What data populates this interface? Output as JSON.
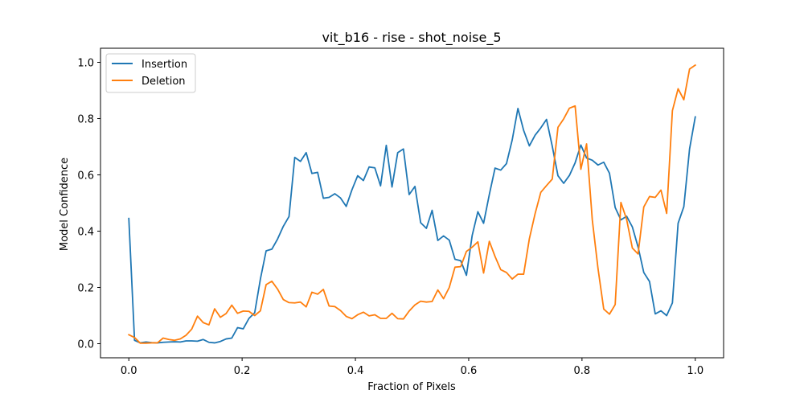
{
  "chart_data": {
    "type": "line",
    "title": "vit_b16 - rise - shot_noise_5",
    "xlabel": "Fraction of Pixels",
    "ylabel": "Model Confidence",
    "xlim": [
      -0.05,
      1.05
    ],
    "ylim": [
      -0.05,
      1.05
    ],
    "xticks": [
      0.0,
      0.2,
      0.4,
      0.6,
      0.8,
      1.0
    ],
    "xtick_labels": [
      "0.0",
      "0.2",
      "0.4",
      "0.6",
      "0.8",
      "1.0"
    ],
    "yticks": [
      0.0,
      0.2,
      0.4,
      0.6,
      0.8,
      1.0
    ],
    "ytick_labels": [
      "0.0",
      "0.2",
      "0.4",
      "0.6",
      "0.8",
      "1.0"
    ],
    "grid": false,
    "legend_position": "top-left",
    "series": [
      {
        "name": "Insertion",
        "color": "#1f77b4",
        "x": [
          0.0,
          0.0101,
          0.0202,
          0.0303,
          0.0404,
          0.0505,
          0.0606,
          0.0707,
          0.0808,
          0.0909,
          0.101,
          0.1111,
          0.1212,
          0.1313,
          0.1414,
          0.1515,
          0.1616,
          0.1717,
          0.1818,
          0.1919,
          0.202,
          0.2121,
          0.2222,
          0.2323,
          0.2424,
          0.2525,
          0.2626,
          0.2727,
          0.2828,
          0.2929,
          0.303,
          0.3131,
          0.3232,
          0.3333,
          0.3434,
          0.3535,
          0.3636,
          0.3737,
          0.3838,
          0.3939,
          0.404,
          0.4141,
          0.4242,
          0.4343,
          0.4444,
          0.4545,
          0.4646,
          0.4747,
          0.4848,
          0.4949,
          0.5051,
          0.5152,
          0.5253,
          0.5354,
          0.5455,
          0.5556,
          0.5657,
          0.5758,
          0.5859,
          0.596,
          0.6061,
          0.6162,
          0.6263,
          0.6364,
          0.6465,
          0.6566,
          0.6667,
          0.6768,
          0.6869,
          0.697,
          0.7071,
          0.7172,
          0.7273,
          0.7374,
          0.7475,
          0.7576,
          0.7677,
          0.7778,
          0.7879,
          0.798,
          0.8081,
          0.8182,
          0.8283,
          0.8384,
          0.8485,
          0.8586,
          0.8687,
          0.8788,
          0.8889,
          0.899,
          0.9091,
          0.9192,
          0.9293,
          0.9394,
          0.9495,
          0.9596,
          0.9697,
          0.9798,
          0.9899,
          1.0
        ],
        "y": [
          0.445,
          0.012,
          0.003,
          0.006,
          0.004,
          0.003,
          0.005,
          0.006,
          0.007,
          0.006,
          0.01,
          0.01,
          0.009,
          0.015,
          0.005,
          0.003,
          0.008,
          0.017,
          0.02,
          0.057,
          0.053,
          0.09,
          0.11,
          0.23,
          0.33,
          0.336,
          0.372,
          0.417,
          0.452,
          0.662,
          0.648,
          0.679,
          0.605,
          0.609,
          0.517,
          0.52,
          0.533,
          0.518,
          0.488,
          0.547,
          0.597,
          0.58,
          0.628,
          0.625,
          0.561,
          0.705,
          0.557,
          0.679,
          0.692,
          0.53,
          0.559,
          0.43,
          0.41,
          0.474,
          0.367,
          0.383,
          0.368,
          0.3,
          0.295,
          0.243,
          0.384,
          0.469,
          0.428,
          0.53,
          0.624,
          0.617,
          0.64,
          0.724,
          0.836,
          0.758,
          0.703,
          0.741,
          0.767,
          0.797,
          0.702,
          0.597,
          0.57,
          0.598,
          0.643,
          0.706,
          0.66,
          0.652,
          0.635,
          0.645,
          0.606,
          0.484,
          0.44,
          0.453,
          0.415,
          0.344,
          0.253,
          0.221,
          0.106,
          0.117,
          0.1,
          0.145,
          0.428,
          0.487,
          0.692,
          0.806
        ]
      },
      {
        "name": "Deletion",
        "color": "#ff7f0e",
        "x": [
          0.0,
          0.0101,
          0.0202,
          0.0303,
          0.0404,
          0.0505,
          0.0606,
          0.0707,
          0.0808,
          0.0909,
          0.101,
          0.1111,
          0.1212,
          0.1313,
          0.1414,
          0.1515,
          0.1616,
          0.1717,
          0.1818,
          0.1919,
          0.202,
          0.2121,
          0.2222,
          0.2323,
          0.2424,
          0.2525,
          0.2626,
          0.2727,
          0.2828,
          0.2929,
          0.303,
          0.3131,
          0.3232,
          0.3333,
          0.3434,
          0.3535,
          0.3636,
          0.3737,
          0.3838,
          0.3939,
          0.404,
          0.4141,
          0.4242,
          0.4343,
          0.4444,
          0.4545,
          0.4646,
          0.4747,
          0.4848,
          0.4949,
          0.5051,
          0.5152,
          0.5253,
          0.5354,
          0.5455,
          0.5556,
          0.5657,
          0.5758,
          0.5859,
          0.596,
          0.6061,
          0.6162,
          0.6263,
          0.6364,
          0.6465,
          0.6566,
          0.6667,
          0.6768,
          0.6869,
          0.697,
          0.7071,
          0.7172,
          0.7273,
          0.7374,
          0.7475,
          0.7576,
          0.7677,
          0.7778,
          0.7879,
          0.798,
          0.8081,
          0.8182,
          0.8283,
          0.8384,
          0.8485,
          0.8586,
          0.8687,
          0.8788,
          0.8889,
          0.899,
          0.9091,
          0.9192,
          0.9293,
          0.9394,
          0.9495,
          0.9596,
          0.9697,
          0.9798,
          0.9899,
          1.0
        ],
        "y": [
          0.032,
          0.022,
          0.002,
          0.002,
          0.003,
          0.003,
          0.02,
          0.015,
          0.012,
          0.017,
          0.03,
          0.052,
          0.098,
          0.075,
          0.067,
          0.124,
          0.094,
          0.107,
          0.137,
          0.108,
          0.116,
          0.115,
          0.1,
          0.117,
          0.21,
          0.222,
          0.194,
          0.157,
          0.146,
          0.145,
          0.148,
          0.131,
          0.183,
          0.176,
          0.193,
          0.134,
          0.132,
          0.118,
          0.097,
          0.089,
          0.103,
          0.112,
          0.099,
          0.103,
          0.09,
          0.09,
          0.108,
          0.089,
          0.088,
          0.116,
          0.138,
          0.151,
          0.148,
          0.15,
          0.191,
          0.16,
          0.2,
          0.272,
          0.274,
          0.328,
          0.343,
          0.362,
          0.251,
          0.364,
          0.31,
          0.263,
          0.253,
          0.23,
          0.247,
          0.247,
          0.373,
          0.462,
          0.538,
          0.562,
          0.585,
          0.769,
          0.799,
          0.837,
          0.845,
          0.62,
          0.71,
          0.44,
          0.267,
          0.123,
          0.105,
          0.139,
          0.502,
          0.442,
          0.34,
          0.319,
          0.486,
          0.523,
          0.52,
          0.546,
          0.463,
          0.828,
          0.906,
          0.867,
          0.976,
          0.99
        ]
      }
    ]
  }
}
